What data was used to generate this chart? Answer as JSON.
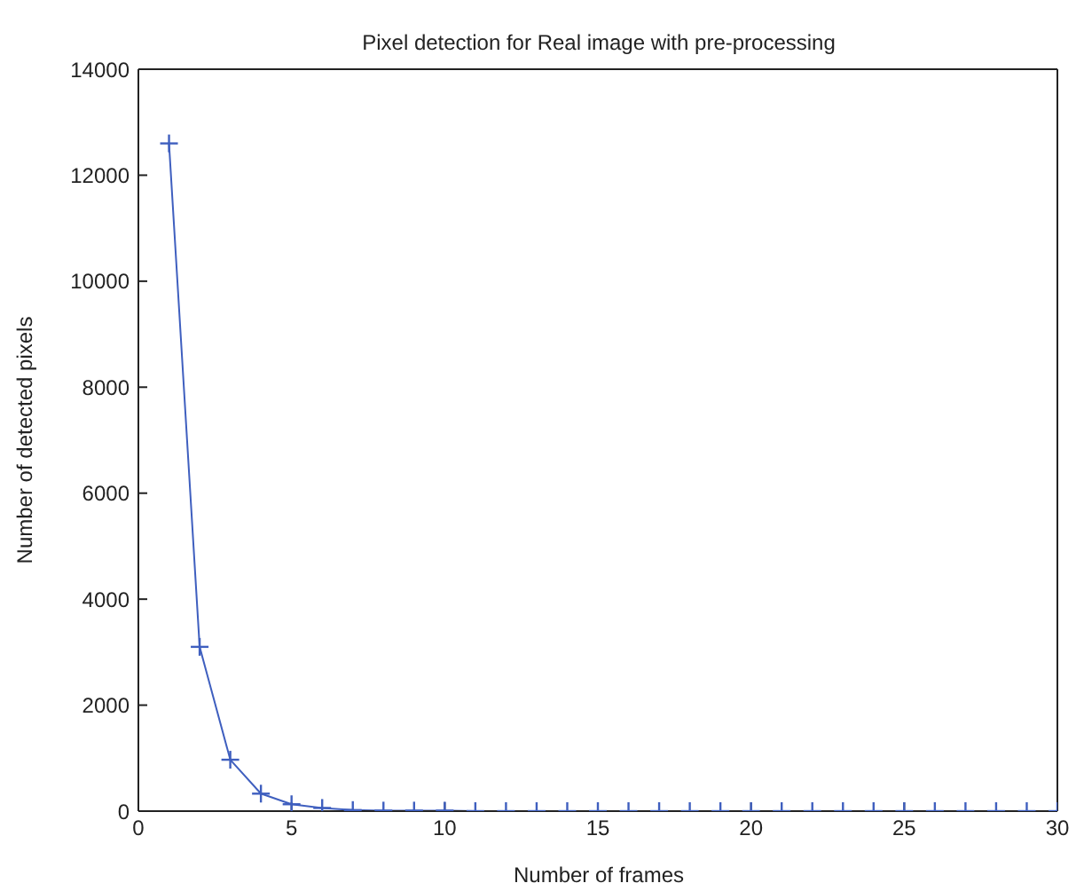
{
  "chart_data": {
    "type": "line",
    "title": "Pixel detection for Real image with pre-processing",
    "xlabel": "Number of frames",
    "ylabel": "Number of detected pixels",
    "x": [
      1,
      2,
      3,
      4,
      5,
      6,
      7,
      8,
      9,
      10,
      11,
      12,
      13,
      14,
      15,
      16,
      17,
      18,
      19,
      20,
      21,
      22,
      23,
      24,
      25,
      26,
      27,
      28,
      29,
      30
    ],
    "series": [
      {
        "color": "#3f5fbf",
        "values": [
          12600,
          3100,
          970,
          330,
          130,
          60,
          20,
          10,
          10,
          10,
          0,
          0,
          0,
          0,
          0,
          0,
          0,
          0,
          0,
          0,
          0,
          0,
          0,
          0,
          0,
          0,
          0,
          0,
          0,
          0
        ]
      }
    ],
    "xlim": [
      0,
      30
    ],
    "xticks": [
      0,
      5,
      10,
      15,
      20,
      25,
      30
    ],
    "ylim": [
      0,
      14000
    ],
    "yticks": [
      0,
      2000,
      4000,
      6000,
      8000,
      10000,
      12000,
      14000
    ],
    "grid": false,
    "legend": false,
    "marker": "cross",
    "line_style": "solid"
  }
}
